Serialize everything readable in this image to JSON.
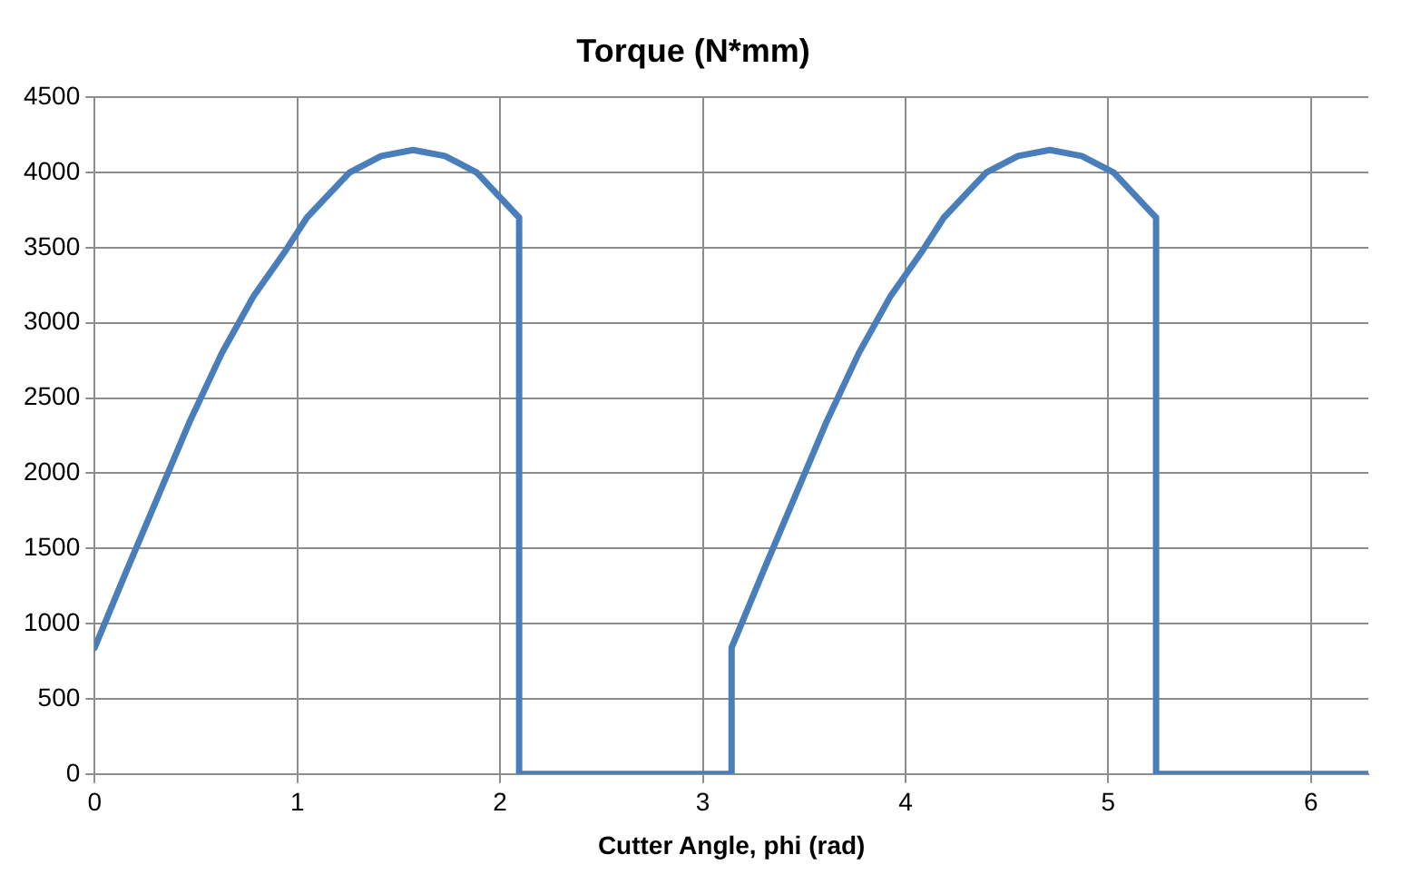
{
  "chart_data": {
    "type": "line",
    "title": "Torque (N*mm)",
    "xlabel": "Cutter Angle, phi (rad)",
    "x": [
      0,
      0.157,
      0.314,
      0.471,
      0.628,
      0.785,
      0.942,
      1.047,
      1.257,
      1.414,
      1.571,
      1.728,
      1.885,
      2.094,
      2.094,
      3.142,
      3.142,
      3.299,
      3.456,
      3.613,
      3.77,
      3.927,
      4.084,
      4.189,
      4.398,
      4.555,
      4.712,
      4.869,
      5.027,
      5.236,
      5.236,
      6.283
    ],
    "series": [
      {
        "color": "#4a7ebb",
        "values": [
          840,
          1350,
          1850,
          2350,
          2800,
          3180,
          3480,
          3700,
          4000,
          4110,
          4150,
          4110,
          4000,
          3700,
          0,
          0,
          840,
          1350,
          1850,
          2350,
          2800,
          3180,
          3480,
          3700,
          4000,
          4110,
          4150,
          4110,
          4000,
          3700,
          0,
          0
        ]
      }
    ],
    "xlim": [
      0,
      6.283
    ],
    "xticks": [
      0,
      1,
      2,
      3,
      4,
      5,
      6
    ],
    "ylim": [
      0,
      4500
    ],
    "yticks": [
      0,
      500,
      1000,
      1500,
      2000,
      2500,
      3000,
      3500,
      4000,
      4500
    ],
    "grid": true,
    "legend": false,
    "marker": "none",
    "line_style": "solid"
  }
}
